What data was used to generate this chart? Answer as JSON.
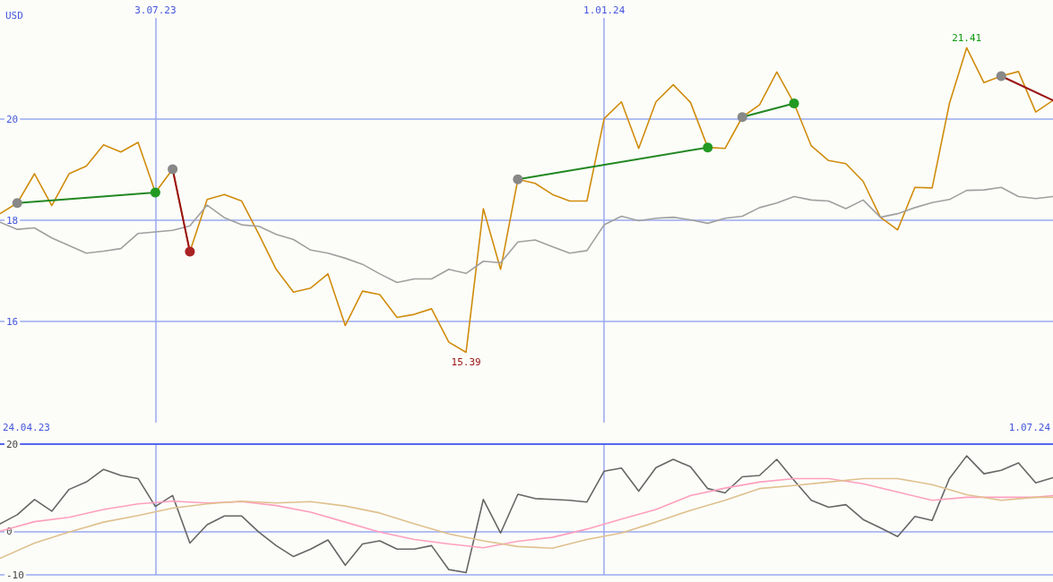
{
  "chart_data": [
    {
      "type": "line",
      "ylabel": "USD",
      "x": [
        "2023-05-01",
        "2023-05-08",
        "2023-05-15",
        "2023-05-22",
        "2023-05-29",
        "2023-06-05",
        "2023-06-12",
        "2023-06-19",
        "2023-06-26",
        "2023-07-03",
        "2023-07-10",
        "2023-07-17",
        "2023-07-24",
        "2023-07-31",
        "2023-08-07",
        "2023-08-14",
        "2023-08-21",
        "2023-08-28",
        "2023-09-04",
        "2023-09-11",
        "2023-09-18",
        "2023-09-25",
        "2023-10-02",
        "2023-10-09",
        "2023-10-16",
        "2023-10-23",
        "2023-10-30",
        "2023-11-06",
        "2023-11-13",
        "2023-11-20",
        "2023-11-27",
        "2023-12-04",
        "2023-12-11",
        "2023-12-18",
        "2023-12-25",
        "2024-01-01",
        "2024-01-08",
        "2024-01-15",
        "2024-01-22",
        "2024-01-29",
        "2024-02-05",
        "2024-02-12",
        "2024-02-19",
        "2024-02-26",
        "2024-03-04",
        "2024-03-11",
        "2024-03-18",
        "2024-03-25",
        "2024-04-01",
        "2024-04-08",
        "2024-04-15",
        "2024-04-22",
        "2024-04-29",
        "2024-05-06",
        "2024-05-13",
        "2024-05-20",
        "2024-05-27",
        "2024-06-03",
        "2024-06-10",
        "2024-06-17",
        "2024-06-24",
        "2024-07-01"
      ],
      "series": [
        {
          "color": "#d08c0c",
          "values": [
            18.13,
            18.34,
            18.92,
            18.29,
            18.92,
            19.07,
            19.49,
            19.35,
            19.54,
            18.55,
            19.01,
            17.38,
            18.41,
            18.51,
            18.38,
            17.72,
            17.03,
            16.58,
            16.66,
            16.94,
            15.92,
            16.6,
            16.53,
            16.08,
            16.14,
            16.25,
            15.59,
            15.39,
            18.23,
            17.03,
            18.81,
            18.73,
            18.51,
            18.38,
            18.38,
            20.01,
            20.34,
            19.42,
            20.34,
            20.68,
            20.33,
            19.44,
            19.42,
            20.04,
            20.28,
            20.93,
            20.31,
            19.47,
            19.18,
            19.12,
            18.77,
            18.06,
            17.81,
            18.65,
            18.64,
            20.31,
            21.41,
            20.72,
            20.85,
            20.94,
            20.14,
            20.37
          ]
        },
        {
          "color": "#a0a0a0",
          "values": [
            17.96,
            17.82,
            17.85,
            17.65,
            17.5,
            17.35,
            17.39,
            17.44,
            17.74,
            17.77,
            17.8,
            17.89,
            18.3,
            18.05,
            17.91,
            17.88,
            17.72,
            17.62,
            17.41,
            17.35,
            17.25,
            17.13,
            16.94,
            16.77,
            16.84,
            16.84,
            17.03,
            16.95,
            17.19,
            17.16,
            17.57,
            17.61,
            17.48,
            17.35,
            17.4,
            17.91,
            18.08,
            17.99,
            18.04,
            18.06,
            18.01,
            17.94,
            18.04,
            18.08,
            18.25,
            18.34,
            18.47,
            18.4,
            18.38,
            18.23,
            18.4,
            18.06,
            18.13,
            18.25,
            18.35,
            18.41,
            18.59,
            18.6,
            18.65,
            18.47,
            18.43,
            18.47
          ]
        },
        {
          "color": "#228822",
          "marker": "circle",
          "x": [
            "2023-05-08",
            "2023-07-03"
          ],
          "values": [
            18.34,
            18.55
          ],
          "colors": [
            "#888888",
            "#229922"
          ]
        },
        {
          "color": "#991111",
          "marker": "circle",
          "x": [
            "2023-07-10",
            "2023-07-17"
          ],
          "values": [
            19.01,
            17.38
          ],
          "colors": [
            "#888888",
            "#aa2222"
          ]
        },
        {
          "color": "#228822",
          "marker": "circle",
          "x": [
            "2023-11-27",
            "2024-02-12"
          ],
          "values": [
            18.81,
            19.44
          ],
          "colors": [
            "#888888",
            "#229922"
          ]
        },
        {
          "color": "#228822",
          "marker": "circle",
          "x": [
            "2024-02-26",
            "2024-03-18"
          ],
          "values": [
            20.04,
            20.31
          ],
          "colors": [
            "#888888",
            "#229922"
          ]
        },
        {
          "color": "#991111",
          "marker": "circle",
          "x": [
            "2024-06-10",
            "2024-07-01"
          ],
          "values": [
            20.85,
            20.37
          ],
          "colors": [
            "#888888",
            null
          ]
        }
      ],
      "xlim": [
        "2023-05-01",
        "2024-07-01"
      ],
      "xticks": [
        {
          "value": "2023-07-03",
          "label": "3.07.23"
        },
        {
          "value": "2024-01-01",
          "label": "1.01.24"
        }
      ],
      "ylim": [
        14,
        22
      ],
      "yticks": [
        16,
        18,
        20
      ],
      "grid": true,
      "marker": "none",
      "line_style": "solid",
      "annotations": [
        {
          "text": "21.41",
          "x": "2024-05-27",
          "y": 21.41
        },
        {
          "text": "15.39",
          "x": "2023-11-06",
          "y": 15.39
        }
      ]
    },
    {
      "type": "line",
      "x": [
        "2023-05-01",
        "2023-05-08",
        "2023-05-15",
        "2023-05-22",
        "2023-05-29",
        "2023-06-05",
        "2023-06-12",
        "2023-06-19",
        "2023-06-26",
        "2023-07-03",
        "2023-07-10",
        "2023-07-17",
        "2023-07-24",
        "2023-07-31",
        "2023-08-07",
        "2023-08-14",
        "2023-08-21",
        "2023-08-28",
        "2023-09-04",
        "2023-09-11",
        "2023-09-18",
        "2023-09-25",
        "2023-10-02",
        "2023-10-09",
        "2023-10-16",
        "2023-10-23",
        "2023-10-30",
        "2023-11-06",
        "2023-11-13",
        "2023-11-20",
        "2023-11-27",
        "2023-12-04",
        "2023-12-11",
        "2023-12-18",
        "2023-12-25",
        "2024-01-01",
        "2024-01-08",
        "2024-01-15",
        "2024-01-22",
        "2024-01-29",
        "2024-02-05",
        "2024-02-12",
        "2024-02-19",
        "2024-02-26",
        "2024-03-04",
        "2024-03-11",
        "2024-03-18",
        "2024-03-25",
        "2024-04-01",
        "2024-04-08",
        "2024-04-15",
        "2024-04-22",
        "2024-04-29",
        "2024-05-06",
        "2024-05-13",
        "2024-05-20",
        "2024-05-27",
        "2024-06-03",
        "2024-06-10",
        "2024-06-17",
        "2024-06-24",
        "2024-07-01"
      ],
      "series": [
        {
          "color": "#666666",
          "values": [
            1.7,
            3.8,
            7.3,
            4.6,
            9.6,
            11.3,
            14.2,
            12.8,
            12.1,
            5.7,
            8.2,
            -2.7,
            1.5,
            3.5,
            3.5,
            -0.2,
            -3.3,
            -5.8,
            -4.1,
            -2,
            -7.8,
            -2.9,
            -2.2,
            -4.1,
            -4.1,
            -3.3,
            -8.8,
            -9.5,
            7.3,
            -0.4,
            8.5,
            7.5,
            7.3,
            7.1,
            6.7,
            13.8,
            14.5,
            9.2,
            14.6,
            16.5,
            14.8,
            9.8,
            8.8,
            12.5,
            12.8,
            16.5,
            11.7,
            7.1,
            5.5,
            6.1,
            2.7,
            0.8,
            -1.2,
            3.4,
            2.5,
            12.1,
            17.3,
            13.2,
            14,
            15.7,
            11.1,
            12.3
          ]
        },
        {
          "color": "#ff9fbf",
          "x": [
            "2023-05-01",
            "2023-05-15",
            "2023-05-29",
            "2023-06-12",
            "2023-06-26",
            "2023-07-10",
            "2023-07-24",
            "2023-08-07",
            "2023-08-21",
            "2023-09-04",
            "2023-09-18",
            "2023-10-02",
            "2023-10-16",
            "2023-10-30",
            "2023-11-13",
            "2023-11-27",
            "2023-12-11",
            "2023-12-25",
            "2024-01-08",
            "2024-01-22",
            "2024-02-05",
            "2024-02-19",
            "2024-03-04",
            "2024-03-18",
            "2024-04-01",
            "2024-04-15",
            "2024-04-29",
            "2024-05-13",
            "2024-05-27",
            "2024-06-10",
            "2024-06-24",
            "2024-07-01"
          ],
          "values": [
            0,
            2.2,
            3.2,
            5,
            6.3,
            6.9,
            6.5,
            6.8,
            5.9,
            4.4,
            2.1,
            -0.2,
            -1.9,
            -2.9,
            -3.8,
            -2.3,
            -1.4,
            0.5,
            2.8,
            5,
            8.2,
            9.9,
            11.3,
            12.1,
            12.1,
            10.9,
            9,
            7.1,
            7.8,
            7.8,
            7.8,
            8.2
          ]
        },
        {
          "color": "#dfc08e",
          "x": [
            "2023-05-01",
            "2023-05-15",
            "2023-05-29",
            "2023-06-12",
            "2023-06-26",
            "2023-07-10",
            "2023-07-24",
            "2023-08-07",
            "2023-08-21",
            "2023-09-04",
            "2023-09-18",
            "2023-10-02",
            "2023-10-16",
            "2023-10-30",
            "2023-11-13",
            "2023-11-27",
            "2023-12-11",
            "2023-12-25",
            "2024-01-08",
            "2024-01-22",
            "2024-02-05",
            "2024-02-19",
            "2024-03-04",
            "2024-03-18",
            "2024-04-01",
            "2024-04-15",
            "2024-04-29",
            "2024-05-13",
            "2024-05-27",
            "2024-06-10",
            "2024-06-24",
            "2024-07-01"
          ],
          "values": [
            -6.2,
            -2.7,
            -0.2,
            2.1,
            3.6,
            5.3,
            6.3,
            6.9,
            6.5,
            6.8,
            5.8,
            4.2,
            1.7,
            -0.6,
            -2.2,
            -3.5,
            -3.9,
            -1.9,
            -0.4,
            2.1,
            4.8,
            7.1,
            9.8,
            10.5,
            11.3,
            12.1,
            12.1,
            10.7,
            8.4,
            7.1,
            7.8,
            7.8
          ]
        }
      ],
      "xlim": [
        "2023-05-01",
        "2024-07-01"
      ],
      "xticks": [
        {
          "value": "2023-07-03",
          "label": null
        },
        {
          "value": "2024-01-01",
          "label": null
        }
      ],
      "ylim": [
        -10,
        20
      ],
      "yticks": [
        -10,
        0,
        20
      ],
      "grid": true,
      "marker": "none",
      "line_style": "solid",
      "tick_labels": "y",
      "annotations": [
        "24.04.23",
        "1.07.24"
      ]
    }
  ]
}
